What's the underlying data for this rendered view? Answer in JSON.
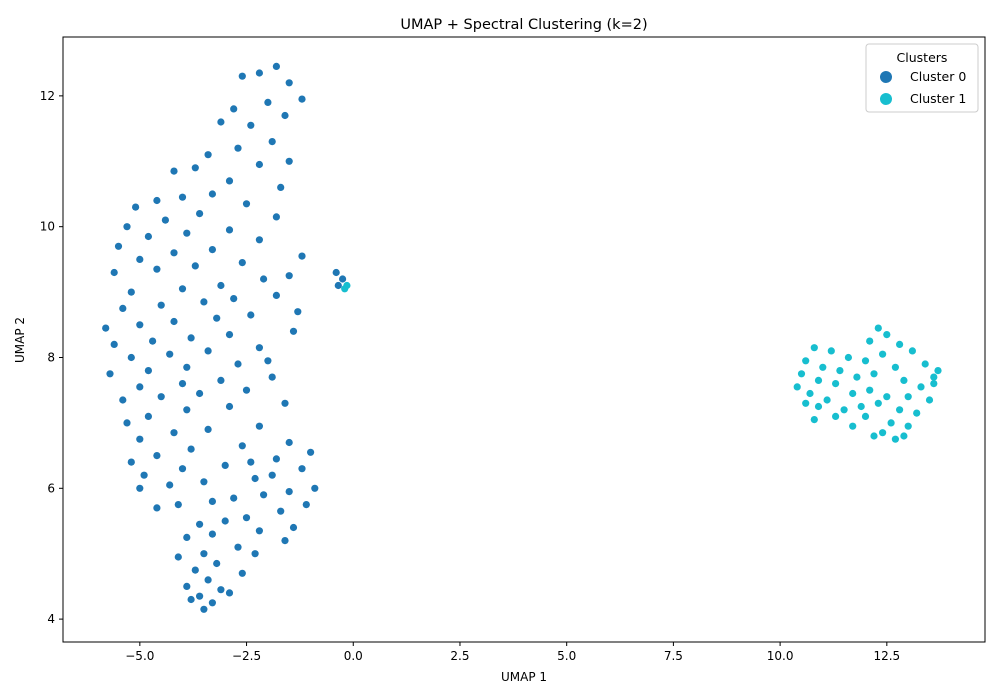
{
  "chart_data": {
    "type": "scatter",
    "title": "UMAP + Spectral Clustering (k=2)",
    "xlabel": "UMAP 1",
    "ylabel": "UMAP 2",
    "xlim": [
      -6.8,
      14.8
    ],
    "ylim": [
      3.65,
      12.9
    ],
    "xticks": [
      -5.0,
      -2.5,
      0.0,
      2.5,
      5.0,
      7.5,
      10.0,
      12.5
    ],
    "xtick_labels": [
      "−5.0",
      "−2.5",
      "0.0",
      "2.5",
      "5.0",
      "7.5",
      "10.0",
      "12.5"
    ],
    "yticks": [
      4,
      6,
      8,
      10,
      12
    ],
    "ytick_labels": [
      "4",
      "6",
      "8",
      "10",
      "12"
    ],
    "grid": false,
    "legend": {
      "title": "Clusters",
      "placement": "top-right",
      "entries": [
        {
          "label": "Cluster 0",
          "color": "#1f77b4"
        },
        {
          "label": "Cluster 1",
          "color": "#17becf"
        }
      ]
    },
    "series": [
      {
        "name": "Cluster 0",
        "color": "#1f77b4",
        "points": [
          [
            -1.8,
            12.45
          ],
          [
            -2.2,
            12.35
          ],
          [
            -2.6,
            12.3
          ],
          [
            -1.5,
            12.2
          ],
          [
            -1.2,
            11.95
          ],
          [
            -2.0,
            11.9
          ],
          [
            -2.8,
            11.8
          ],
          [
            -1.6,
            11.7
          ],
          [
            -3.1,
            11.6
          ],
          [
            -2.4,
            11.55
          ],
          [
            -1.9,
            11.3
          ],
          [
            -2.7,
            11.2
          ],
          [
            -3.4,
            11.1
          ],
          [
            -1.5,
            11.0
          ],
          [
            -2.2,
            10.95
          ],
          [
            -3.7,
            10.9
          ],
          [
            -4.2,
            10.85
          ],
          [
            -2.9,
            10.7
          ],
          [
            -1.7,
            10.6
          ],
          [
            -3.3,
            10.5
          ],
          [
            -4.0,
            10.45
          ],
          [
            -4.6,
            10.4
          ],
          [
            -2.5,
            10.35
          ],
          [
            -5.1,
            10.3
          ],
          [
            -3.6,
            10.2
          ],
          [
            -1.8,
            10.15
          ],
          [
            -4.4,
            10.1
          ],
          [
            -5.3,
            10.0
          ],
          [
            -2.9,
            9.95
          ],
          [
            -3.9,
            9.9
          ],
          [
            -4.8,
            9.85
          ],
          [
            -2.2,
            9.8
          ],
          [
            -5.5,
            9.7
          ],
          [
            -3.3,
            9.65
          ],
          [
            -4.2,
            9.6
          ],
          [
            -1.2,
            9.55
          ],
          [
            -5.0,
            9.5
          ],
          [
            -2.6,
            9.45
          ],
          [
            -3.7,
            9.4
          ],
          [
            -4.6,
            9.35
          ],
          [
            -5.6,
            9.3
          ],
          [
            -1.5,
            9.25
          ],
          [
            -2.1,
            9.2
          ],
          [
            -3.1,
            9.1
          ],
          [
            -4.0,
            9.05
          ],
          [
            -5.2,
            9.0
          ],
          [
            -1.8,
            8.95
          ],
          [
            -2.8,
            8.9
          ],
          [
            -3.5,
            8.85
          ],
          [
            -4.5,
            8.8
          ],
          [
            -5.4,
            8.75
          ],
          [
            -1.3,
            8.7
          ],
          [
            -2.4,
            8.65
          ],
          [
            -3.2,
            8.6
          ],
          [
            -4.2,
            8.55
          ],
          [
            -5.0,
            8.5
          ],
          [
            -5.8,
            8.45
          ],
          [
            -1.4,
            8.4
          ],
          [
            -2.9,
            8.35
          ],
          [
            -3.8,
            8.3
          ],
          [
            -4.7,
            8.25
          ],
          [
            -5.6,
            8.2
          ],
          [
            -2.2,
            8.15
          ],
          [
            -3.4,
            8.1
          ],
          [
            -4.3,
            8.05
          ],
          [
            -5.2,
            8.0
          ],
          [
            -2.0,
            7.95
          ],
          [
            -2.7,
            7.9
          ],
          [
            -3.9,
            7.85
          ],
          [
            -4.8,
            7.8
          ],
          [
            -5.7,
            7.75
          ],
          [
            -1.9,
            7.7
          ],
          [
            -3.1,
            7.65
          ],
          [
            -4.0,
            7.6
          ],
          [
            -5.0,
            7.55
          ],
          [
            -2.5,
            7.5
          ],
          [
            -3.6,
            7.45
          ],
          [
            -4.5,
            7.4
          ],
          [
            -5.4,
            7.35
          ],
          [
            -1.6,
            7.3
          ],
          [
            -2.9,
            7.25
          ],
          [
            -3.9,
            7.2
          ],
          [
            -4.8,
            7.1
          ],
          [
            -5.3,
            7.0
          ],
          [
            -2.2,
            6.95
          ],
          [
            -3.4,
            6.9
          ],
          [
            -4.2,
            6.85
          ],
          [
            -5.0,
            6.75
          ],
          [
            -1.5,
            6.7
          ],
          [
            -2.6,
            6.65
          ],
          [
            -3.8,
            6.6
          ],
          [
            -4.6,
            6.5
          ],
          [
            -5.2,
            6.4
          ],
          [
            -1.0,
            6.55
          ],
          [
            -1.8,
            6.45
          ],
          [
            -2.4,
            6.4
          ],
          [
            -3.0,
            6.35
          ],
          [
            -4.0,
            6.3
          ],
          [
            -4.9,
            6.2
          ],
          [
            -1.2,
            6.3
          ],
          [
            -1.9,
            6.2
          ],
          [
            -2.3,
            6.15
          ],
          [
            -3.5,
            6.1
          ],
          [
            -4.3,
            6.05
          ],
          [
            -5.0,
            6.0
          ],
          [
            -0.9,
            6.0
          ],
          [
            -1.5,
            5.95
          ],
          [
            -2.1,
            5.9
          ],
          [
            -2.8,
            5.85
          ],
          [
            -3.3,
            5.8
          ],
          [
            -4.1,
            5.75
          ],
          [
            -4.6,
            5.7
          ],
          [
            -1.1,
            5.75
          ],
          [
            -1.7,
            5.65
          ],
          [
            -2.5,
            5.55
          ],
          [
            -3.0,
            5.5
          ],
          [
            -3.6,
            5.45
          ],
          [
            -1.4,
            5.4
          ],
          [
            -2.2,
            5.35
          ],
          [
            -3.3,
            5.3
          ],
          [
            -3.9,
            5.25
          ],
          [
            -1.6,
            5.2
          ],
          [
            -2.7,
            5.1
          ],
          [
            -3.5,
            5.0
          ],
          [
            -2.3,
            5.0
          ],
          [
            -4.1,
            4.95
          ],
          [
            -3.2,
            4.85
          ],
          [
            -3.7,
            4.75
          ],
          [
            -2.6,
            4.7
          ],
          [
            -3.4,
            4.6
          ],
          [
            -3.9,
            4.5
          ],
          [
            -3.1,
            4.45
          ],
          [
            -3.6,
            4.35
          ],
          [
            -3.3,
            4.25
          ],
          [
            -3.5,
            4.15
          ],
          [
            -3.8,
            4.3
          ],
          [
            -2.9,
            4.4
          ],
          [
            -0.4,
            9.3
          ],
          [
            -0.35,
            9.1
          ],
          [
            -0.25,
            9.2
          ]
        ]
      },
      {
        "name": "Cluster 1",
        "color": "#17becf",
        "points": [
          [
            12.3,
            8.45
          ],
          [
            12.5,
            8.35
          ],
          [
            12.1,
            8.25
          ],
          [
            12.8,
            8.2
          ],
          [
            10.8,
            8.15
          ],
          [
            11.2,
            8.1
          ],
          [
            13.1,
            8.1
          ],
          [
            12.4,
            8.05
          ],
          [
            11.6,
            8.0
          ],
          [
            10.6,
            7.95
          ],
          [
            12.0,
            7.95
          ],
          [
            13.4,
            7.9
          ],
          [
            11.0,
            7.85
          ],
          [
            12.7,
            7.85
          ],
          [
            11.4,
            7.8
          ],
          [
            10.5,
            7.75
          ],
          [
            12.2,
            7.75
          ],
          [
            13.6,
            7.7
          ],
          [
            11.8,
            7.7
          ],
          [
            10.9,
            7.65
          ],
          [
            12.9,
            7.65
          ],
          [
            11.3,
            7.6
          ],
          [
            13.3,
            7.55
          ],
          [
            10.4,
            7.55
          ],
          [
            12.1,
            7.5
          ],
          [
            11.7,
            7.45
          ],
          [
            10.7,
            7.45
          ],
          [
            13.0,
            7.4
          ],
          [
            12.5,
            7.4
          ],
          [
            11.1,
            7.35
          ],
          [
            13.5,
            7.35
          ],
          [
            12.3,
            7.3
          ],
          [
            10.9,
            7.25
          ],
          [
            11.5,
            7.2
          ],
          [
            12.8,
            7.2
          ],
          [
            13.2,
            7.15
          ],
          [
            11.3,
            7.1
          ],
          [
            12.0,
            7.1
          ],
          [
            10.8,
            7.05
          ],
          [
            12.6,
            7.0
          ],
          [
            13.0,
            6.95
          ],
          [
            11.7,
            6.95
          ],
          [
            12.4,
            6.85
          ],
          [
            12.9,
            6.8
          ],
          [
            12.2,
            6.8
          ],
          [
            12.7,
            6.75
          ],
          [
            13.6,
            7.6
          ],
          [
            13.7,
            7.8
          ],
          [
            11.9,
            7.25
          ],
          [
            10.6,
            7.3
          ],
          [
            -0.2,
            9.05
          ],
          [
            -0.15,
            9.1
          ]
        ]
      }
    ]
  }
}
